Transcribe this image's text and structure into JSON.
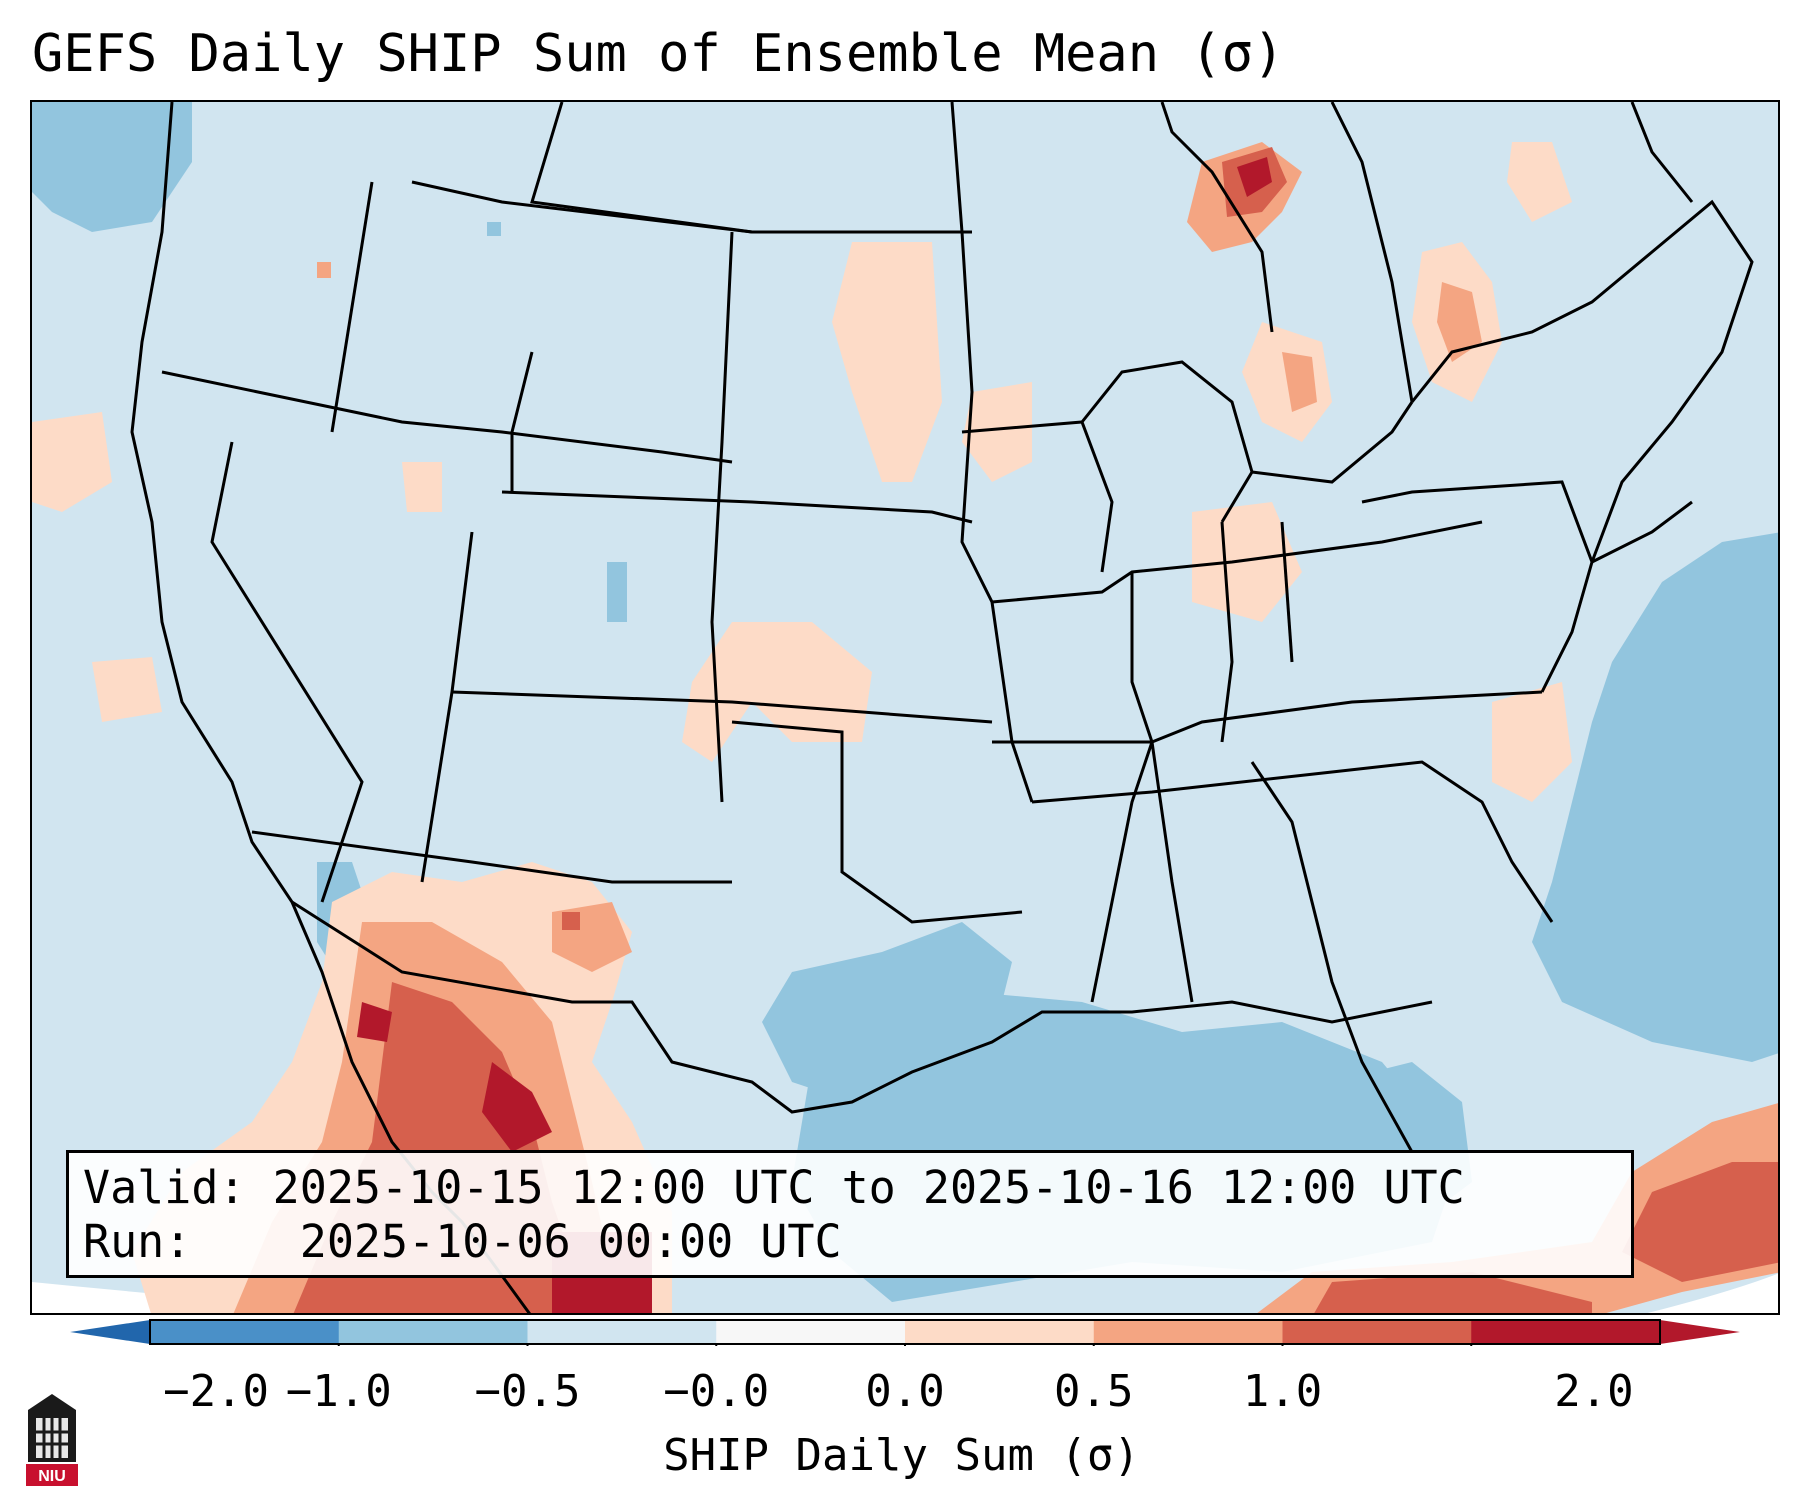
{
  "title": "GEFS Daily SHIP Sum of Ensemble Mean (σ)",
  "info": {
    "valid_label": "Valid:",
    "valid_value": "2025-10-15 12:00 UTC to 2025-10-16 12:00 UTC",
    "run_label": "Run:",
    "run_value": "2025-10-06 00:00 UTC"
  },
  "colorbar": {
    "label": "SHIP Daily Sum (σ)",
    "ticks": [
      "−2.0",
      "−1.0",
      "−0.5",
      "−0.0",
      "0.0",
      "0.5",
      "1.0",
      "2.0"
    ],
    "colors": [
      "#4a90c8",
      "#92c5de",
      "#d1e5f0",
      "#f7f7f7",
      "#fddbc7",
      "#f4a582",
      "#d6604d",
      "#b2182b"
    ],
    "extend": "both"
  },
  "logo_text": "NIU"
}
